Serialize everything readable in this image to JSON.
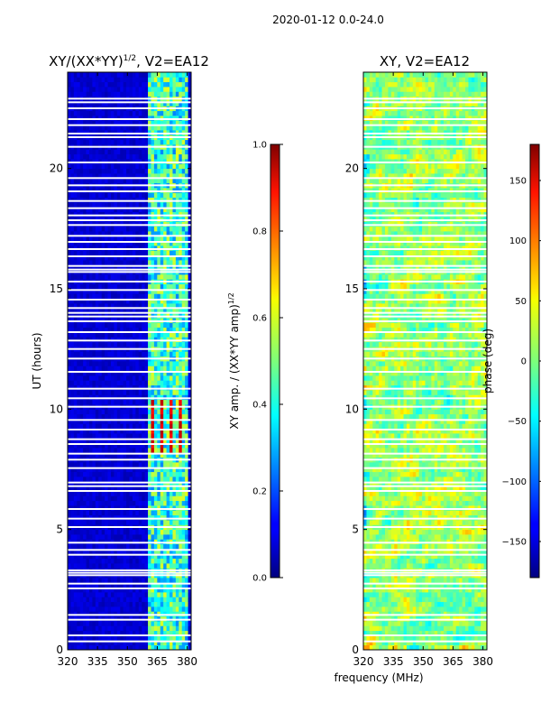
{
  "figure": {
    "suptitle": "2020-01-12 0.0-24.0",
    "shared_xlabel": "frequency (MHz)"
  },
  "chart_data": [
    {
      "type": "heatmap",
      "title_text": "XY/(XX*YY)",
      "title_exponent": "1/2",
      "title_suffix": ", V2=EA12",
      "xlabel": "frequency (MHz)",
      "ylabel": "UT (hours)",
      "xlim": [
        320,
        382
      ],
      "ylim": [
        0,
        24
      ],
      "xticks": [
        320,
        335,
        350,
        365,
        380
      ],
      "yticks": [
        0,
        5,
        10,
        15,
        20
      ],
      "colorbar": {
        "label_text": "XY amp. / (XX*YY amp)",
        "label_exponent": "1/2",
        "range": [
          0.0,
          1.0
        ],
        "ticks": [
          "0.0",
          "0.2",
          "0.4",
          "0.6",
          "0.8",
          "1.0"
        ],
        "colormap": "jet"
      },
      "description_values": {
        "baseline_level": 0.05,
        "bright_band_mhz": [
          360,
          381
        ],
        "bright_band_level": 0.5,
        "peak_level": 0.85,
        "peak_time_hours": [
          8.2,
          10.5
        ]
      }
    },
    {
      "type": "heatmap",
      "title_text": "XY, V2=EA12",
      "xlabel": "frequency (MHz)",
      "ylabel": "",
      "xlim": [
        320,
        382
      ],
      "ylim": [
        0,
        24
      ],
      "xticks": [
        320,
        335,
        350,
        365,
        380
      ],
      "yticks": [
        0,
        5,
        10,
        15,
        20
      ],
      "colorbar": {
        "label_text": "phase (deg)",
        "range": [
          -180,
          180
        ],
        "ticks": [
          "-150",
          "-100",
          "-50",
          "0",
          "50",
          "100",
          "150"
        ],
        "colormap": "jet"
      }
    }
  ],
  "flagged_hours": [
    0.35,
    0.6,
    1.25,
    1.45,
    2.55,
    2.75,
    3.1,
    3.2,
    3.3,
    3.95,
    4.15,
    4.45,
    5.1,
    5.45,
    5.85,
    6.6,
    6.8,
    6.95,
    7.55,
    7.9,
    8.15,
    8.55,
    8.75,
    9.15,
    9.55,
    10.1,
    10.45,
    10.85,
    11.55,
    12.1,
    12.5,
    12.85,
    13.2,
    13.65,
    13.85,
    14.0,
    14.2,
    14.55,
    14.95,
    15.3,
    15.7,
    15.8,
    15.95,
    16.35,
    16.65,
    16.95,
    17.2,
    17.65,
    17.85,
    18.05,
    18.35,
    18.65,
    19.05,
    19.3,
    19.6,
    20.25,
    20.9,
    21.3,
    21.45,
    21.8,
    22.05,
    22.5,
    22.75,
    22.9
  ]
}
